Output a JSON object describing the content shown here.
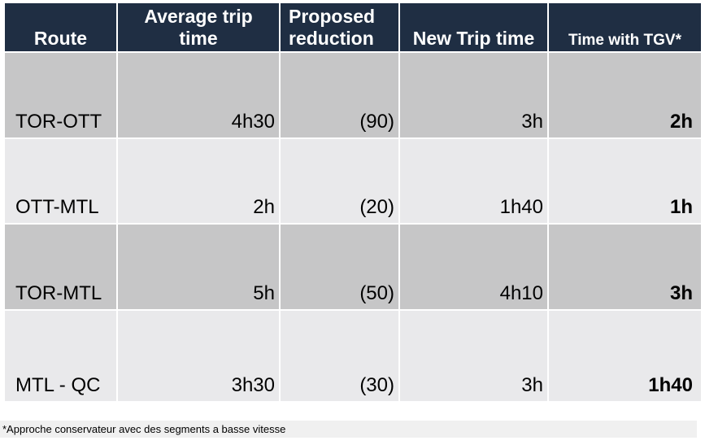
{
  "colors": {
    "header_bg": "#1f2e43",
    "header_text": "#ffffff",
    "row_dark_bg": "#c6c6c7",
    "row_light_bg": "#e9e9eb",
    "footnote_bg": "#f0f0f0",
    "body_text": "#000000",
    "page_bg": "#ffffff"
  },
  "table": {
    "columns": [
      {
        "id": "route",
        "label": "Route"
      },
      {
        "id": "avg_trip_time",
        "label": "Average trip\ntime"
      },
      {
        "id": "proposed_reduction",
        "label": "Proposed\nreduction"
      },
      {
        "id": "new_trip_time",
        "label": "New Trip time"
      },
      {
        "id": "time_with_tgv",
        "label": "Time with TGV*"
      }
    ],
    "rows": [
      {
        "route": "TOR-OTT",
        "avg_trip_time": "4h30",
        "proposed_reduction": "(90)",
        "new_trip_time": "3h",
        "time_with_tgv": "2h"
      },
      {
        "route": "OTT-MTL",
        "avg_trip_time": "2h",
        "proposed_reduction": "(20)",
        "new_trip_time": "1h40",
        "time_with_tgv": "1h"
      },
      {
        "route": "TOR-MTL",
        "avg_trip_time": "5h",
        "proposed_reduction": "(50)",
        "new_trip_time": "4h10",
        "time_with_tgv": "3h"
      },
      {
        "route": "MTL - QC",
        "avg_trip_time": "3h30",
        "proposed_reduction": "(30)",
        "new_trip_time": "3h",
        "time_with_tgv": "1h40"
      }
    ]
  },
  "footnote": "*Approche conservateur avec des segments a basse vitesse"
}
